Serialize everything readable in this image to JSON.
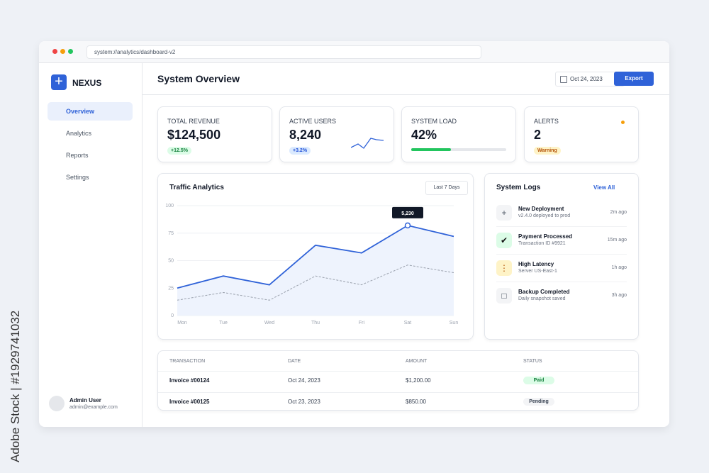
{
  "browser": {
    "url": "system://analytics/dashboard-v2"
  },
  "sidebar": {
    "brand": "NEXUS",
    "nav": [
      "Overview",
      "Analytics",
      "Reports",
      "Settings"
    ],
    "user": {
      "name": "Admin User",
      "email": "admin@example.com"
    }
  },
  "header": {
    "title": "System Overview",
    "date": "Oct 24, 2023",
    "button": "Export"
  },
  "kpis": [
    {
      "label": "TOTAL REVENUE",
      "value": "$124,500",
      "badge": "+12.5%"
    },
    {
      "label": "ACTIVE USERS",
      "value": "8,240",
      "badge": "+3.2%"
    },
    {
      "label": "SYSTEM LOAD",
      "value": "42%",
      "progress": 42
    },
    {
      "label": "ALERTS",
      "value": "2",
      "badge": "Warning"
    }
  ],
  "traffic": {
    "title": "Traffic Analytics",
    "range_button": "Last 7 Days",
    "chart_data": {
      "type": "line",
      "categories": [
        "Mon",
        "Tue",
        "Wed",
        "Thu",
        "Fri",
        "Sat",
        "Sun"
      ],
      "series": [
        {
          "color": "#2f62d8",
          "values": [
            25,
            36,
            28,
            64,
            57,
            82,
            72
          ]
        },
        {
          "color": "#9aa1ad",
          "dashed": true,
          "values": [
            14,
            21,
            14,
            36,
            28,
            46,
            39
          ]
        }
      ],
      "ylim": [
        0,
        100
      ],
      "yticks": [
        0,
        25,
        50,
        75,
        100
      ],
      "grid": true,
      "annotation": {
        "series": 0,
        "index": 5,
        "label": "5,230"
      }
    }
  },
  "logs": {
    "title": "System Logs",
    "link": "View All",
    "items": [
      {
        "title": "New Deployment",
        "detail": "v2.4.0 deployed to prod",
        "time": "2m ago"
      },
      {
        "title": "Payment Processed",
        "detail": "Transaction ID #9921",
        "time": "15m ago"
      },
      {
        "title": "High Latency",
        "detail": "Server US-East-1",
        "time": "1h ago"
      },
      {
        "title": "Backup Completed",
        "detail": "Daily snapshot saved",
        "time": "3h ago"
      }
    ]
  },
  "table": {
    "columns": [
      "TRANSACTION",
      "DATE",
      "AMOUNT",
      "STATUS"
    ],
    "rows": [
      [
        "Invoice #00124",
        "Oct 24, 2023",
        "$1,200.00",
        "Paid"
      ],
      [
        "Invoice #00125",
        "Oct 23, 2023",
        "$850.00",
        "Pending"
      ]
    ]
  },
  "watermark": "Adobe Stock | #1929741032"
}
